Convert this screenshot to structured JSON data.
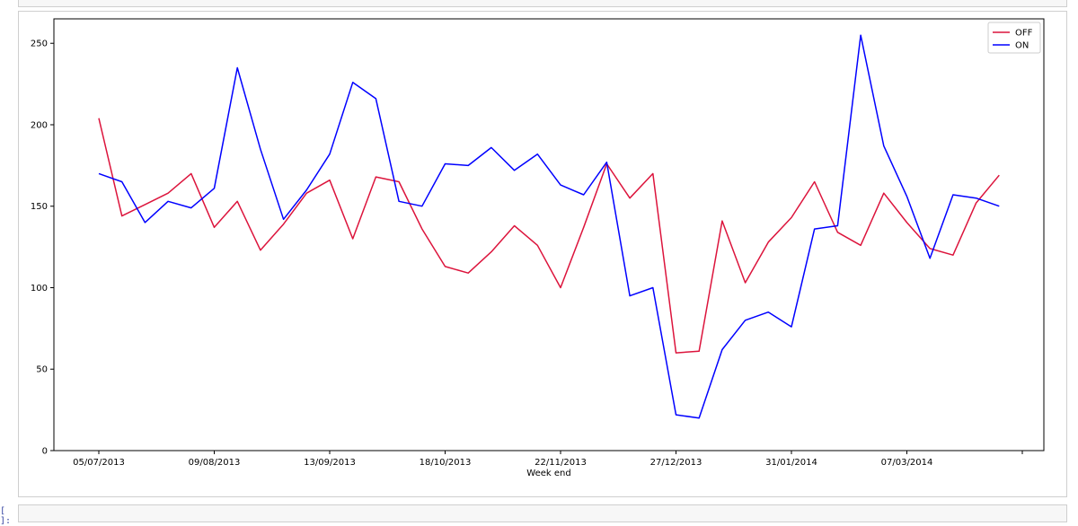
{
  "notebook": {
    "next_prompt": "[ ]:"
  },
  "chart_data": {
    "type": "line",
    "title": "",
    "xlabel": "Week end",
    "ylabel": "",
    "x_tick_labels": [
      "05/07/2013",
      "09/08/2013",
      "13/09/2013",
      "18/10/2013",
      "22/11/2013",
      "27/12/2013",
      "31/01/2014",
      "07/03/2014"
    ],
    "y_ticks": [
      0,
      50,
      100,
      150,
      200,
      250
    ],
    "ylim": [
      0,
      265
    ],
    "grid": false,
    "legend_position": "top-right",
    "series": [
      {
        "name": "OFF",
        "color": "#dc143c",
        "values": [
          204,
          144,
          151,
          158,
          170,
          137,
          153,
          123,
          139,
          158,
          166,
          130,
          168,
          165,
          136,
          113,
          109,
          122,
          138,
          126,
          100,
          137,
          176,
          155,
          170,
          60,
          61,
          141,
          103,
          128,
          143,
          165,
          134,
          126,
          158,
          140,
          124,
          120,
          152,
          169
        ]
      },
      {
        "name": "ON",
        "color": "#0000ff",
        "values": [
          170,
          165,
          140,
          153,
          149,
          161,
          235,
          185,
          142,
          160,
          182,
          226,
          216,
          153,
          150,
          176,
          175,
          186,
          172,
          182,
          163,
          157,
          177,
          95,
          100,
          22,
          20,
          62,
          80,
          85,
          76,
          136,
          138,
          255,
          187,
          156,
          118,
          157,
          155,
          150
        ]
      }
    ]
  }
}
